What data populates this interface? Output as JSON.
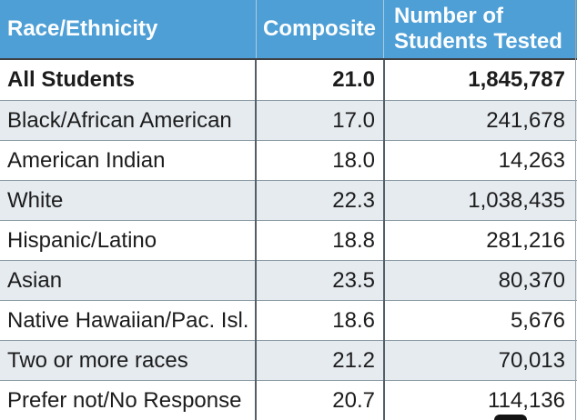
{
  "colors": {
    "header_bg": "#4E9FD6",
    "header_text": "#FDFEFE",
    "row_shade": "#E6EBF0",
    "row_white": "#FFFFFF",
    "body_text": "#1C1C1C",
    "row_divider": "#8A99A3",
    "header_underline": "#3D4144",
    "column_divider": "#535F67",
    "header_column_divider": "#A9C9DF",
    "bottom_bar": "#141414"
  },
  "table": {
    "header": {
      "col1": "Race/Ethnicity",
      "col2": "Composite",
      "col3": "Number of Students Tested"
    },
    "rows": [
      {
        "label": "All Students",
        "composite": "21.0",
        "students": "1,845,787",
        "bold": true,
        "shaded": false
      },
      {
        "label": "Black/African American",
        "composite": "17.0",
        "students": "241,678",
        "bold": false,
        "shaded": true
      },
      {
        "label": "American Indian",
        "composite": "18.0",
        "students": "14,263",
        "bold": false,
        "shaded": false
      },
      {
        "label": "White",
        "composite": "22.3",
        "students": "1,038,435",
        "bold": false,
        "shaded": true
      },
      {
        "label": "Hispanic/Latino",
        "composite": "18.8",
        "students": "281,216",
        "bold": false,
        "shaded": false
      },
      {
        "label": "Asian",
        "composite": "23.5",
        "students": "80,370",
        "bold": false,
        "shaded": true
      },
      {
        "label": "Native Hawaiian/Pac. Isl.",
        "composite": "18.6",
        "students": "5,676",
        "bold": false,
        "shaded": false
      },
      {
        "label": "Two or more races",
        "composite": "21.2",
        "students": "70,013",
        "bold": false,
        "shaded": true
      },
      {
        "label": "Prefer not/No Response",
        "composite": "20.7",
        "students": "114,136",
        "bold": false,
        "shaded": false
      }
    ]
  },
  "chart_data": {
    "type": "table",
    "title": "Composite score and number of students tested by race/ethnicity",
    "columns": [
      "Race/Ethnicity",
      "Composite",
      "Number of Students Tested"
    ],
    "rows": [
      [
        "All Students",
        21.0,
        1845787
      ],
      [
        "Black/African American",
        17.0,
        241678
      ],
      [
        "American Indian",
        18.0,
        14263
      ],
      [
        "White",
        22.3,
        1038435
      ],
      [
        "Hispanic/Latino",
        18.8,
        281216
      ],
      [
        "Asian",
        23.5,
        80370
      ],
      [
        "Native Hawaiian/Pac. Isl.",
        18.6,
        5676
      ],
      [
        "Two or more races",
        21.2,
        70013
      ],
      [
        "Prefer not/No Response",
        20.7,
        114136
      ]
    ]
  }
}
